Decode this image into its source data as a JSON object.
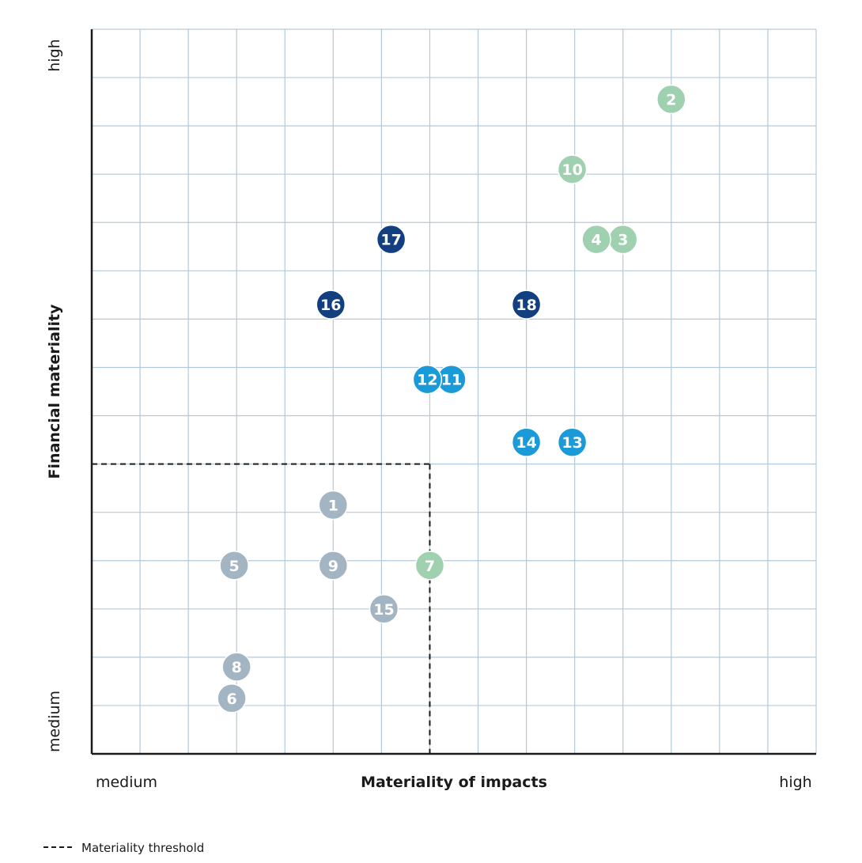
{
  "chart_data": {
    "type": "scatter",
    "title": "",
    "xlabel": "Materiality of impacts",
    "ylabel": "Financial materiality",
    "x_low_label": "medium",
    "x_high_label": "high",
    "y_low_label": "medium",
    "y_high_label": "high",
    "xlim": [
      0,
      15
    ],
    "ylim": [
      0,
      15
    ],
    "grid": true,
    "threshold": {
      "x": 7,
      "y": 6
    },
    "legend": {
      "threshold_label": "Materiality threshold",
      "placement": "bottom-left"
    },
    "colors": {
      "green": "#9fd1b0",
      "grey": "#a3b4c3",
      "light_blue": "#1b9ad8",
      "dark_blue": "#113f7f"
    },
    "points": [
      {
        "label": "1",
        "x": 5.0,
        "y": 5.15,
        "color": "grey"
      },
      {
        "label": "2",
        "x": 12.0,
        "y": 13.55,
        "color": "green"
      },
      {
        "label": "3",
        "x": 11.0,
        "y": 10.65,
        "color": "green"
      },
      {
        "label": "4",
        "x": 10.45,
        "y": 10.65,
        "color": "green"
      },
      {
        "label": "5",
        "x": 2.95,
        "y": 3.9,
        "color": "grey"
      },
      {
        "label": "6",
        "x": 2.9,
        "y": 1.15,
        "color": "grey"
      },
      {
        "label": "7",
        "x": 7.0,
        "y": 3.9,
        "color": "green"
      },
      {
        "label": "8",
        "x": 3.0,
        "y": 1.8,
        "color": "grey"
      },
      {
        "label": "9",
        "x": 5.0,
        "y": 3.9,
        "color": "grey"
      },
      {
        "label": "10",
        "x": 9.95,
        "y": 12.1,
        "color": "green"
      },
      {
        "label": "11",
        "x": 7.45,
        "y": 7.75,
        "color": "light_blue"
      },
      {
        "label": "12",
        "x": 6.95,
        "y": 7.75,
        "color": "light_blue"
      },
      {
        "label": "13",
        "x": 9.95,
        "y": 6.45,
        "color": "light_blue"
      },
      {
        "label": "14",
        "x": 9.0,
        "y": 6.45,
        "color": "light_blue"
      },
      {
        "label": "15",
        "x": 6.05,
        "y": 3.0,
        "color": "grey"
      },
      {
        "label": "16",
        "x": 4.95,
        "y": 9.3,
        "color": "dark_blue"
      },
      {
        "label": "17",
        "x": 6.2,
        "y": 10.65,
        "color": "dark_blue"
      },
      {
        "label": "18",
        "x": 9.0,
        "y": 9.3,
        "color": "dark_blue"
      }
    ]
  }
}
